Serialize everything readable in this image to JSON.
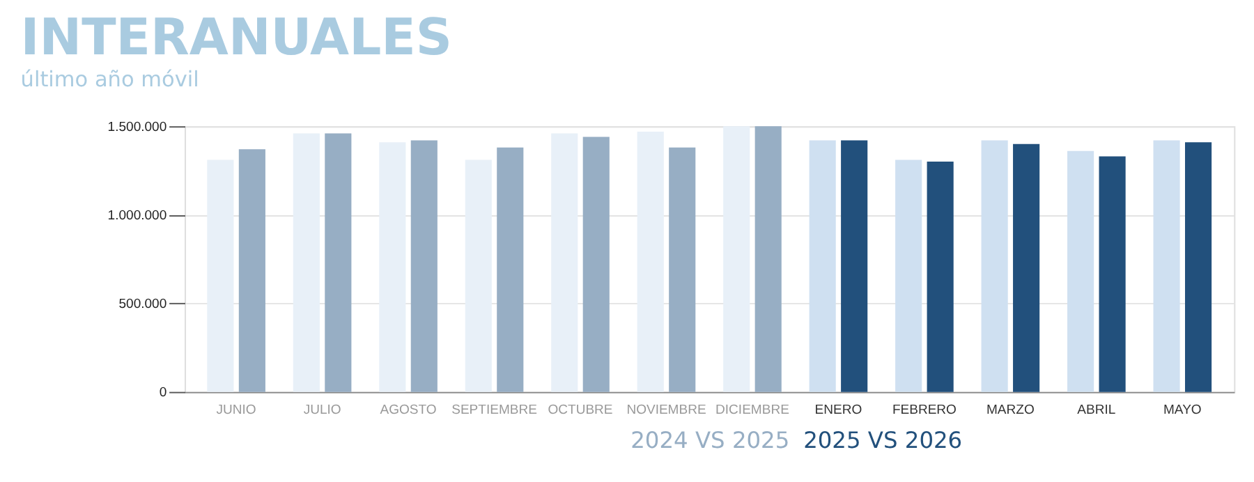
{
  "chart_data": {
    "type": "bar",
    "title": "INTERANUALES",
    "subtitle": "último año móvil",
    "categories": [
      "JUNIO",
      "JULIO",
      "AGOSTO",
      "SEPTIEMBRE",
      "OCTUBRE",
      "NOVIEMBRE",
      "DICIEMBRE",
      "ENERO",
      "FEBRERO",
      "MARZO",
      "ABRIL",
      "MAYO"
    ],
    "series": [
      {
        "colors": [
          "#e8f0f8",
          "#e8f0f8",
          "#e8f0f8",
          "#e8f0f8",
          "#e8f0f8",
          "#e8f0f8",
          "#e8f0f8",
          "#cfe0f1",
          "#cfe0f1",
          "#cfe0f1",
          "#cfe0f1",
          "#cfe0f1"
        ],
        "values": [
          1310000,
          1460000,
          1410000,
          1310000,
          1460000,
          1470000,
          1500000,
          1420000,
          1310000,
          1420000,
          1360000,
          1420000
        ]
      },
      {
        "colors": [
          "#97aec4",
          "#97aec4",
          "#97aec4",
          "#97aec4",
          "#97aec4",
          "#97aec4",
          "#97aec4",
          "#22507c",
          "#22507c",
          "#22507c",
          "#22507c",
          "#22507c"
        ],
        "values": [
          1370000,
          1460000,
          1420000,
          1380000,
          1440000,
          1380000,
          1500000,
          1420000,
          1300000,
          1400000,
          1330000,
          1410000
        ]
      }
    ],
    "ylim": [
      0,
      1500000
    ],
    "yticks": [
      0,
      {
        "value": 500000,
        "label": "500.000"
      },
      {
        "value": 1000000,
        "label": "1.000.000"
      },
      {
        "value": 1500000,
        "label": "1.500.000"
      }
    ],
    "grid": "y",
    "annotations": [
      "2024 VS 2025",
      "2025 VS 2026"
    ]
  }
}
